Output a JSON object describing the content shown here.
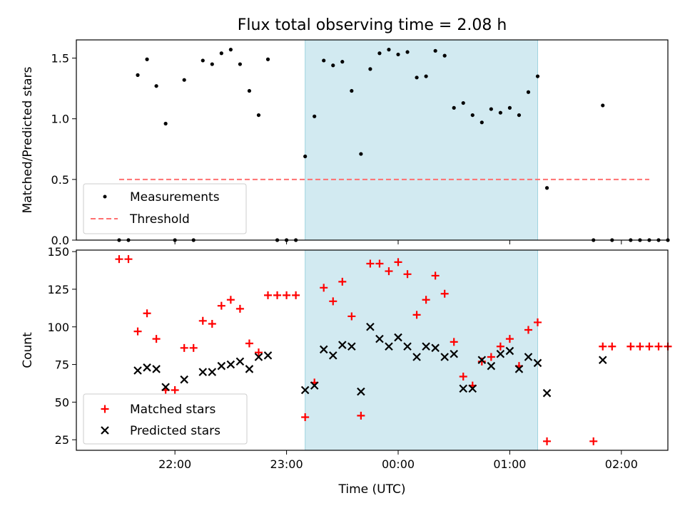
{
  "chart_data": [
    {
      "type": "scatter",
      "panel": "top",
      "title": "Flux total observing time = 2.08 h",
      "ylabel": "Matched/Predicted stars",
      "xlabel": "",
      "ylim": [
        0,
        1.65
      ],
      "yticks": [
        0.0,
        0.5,
        1.0,
        1.5
      ],
      "ytick_labels": [
        "0.0",
        "0.5",
        "1.0",
        "1.5"
      ],
      "threshold": {
        "name": "Threshold",
        "value": 0.5,
        "x_start": "21:30",
        "x_end": "02:15",
        "color": "#ff7070"
      },
      "legend_position": "lower-left",
      "series": [
        {
          "name": "Measurements",
          "marker": "dot",
          "color": "#000000",
          "points": [
            [
              "21:30",
              0
            ],
            [
              "21:35",
              0
            ],
            [
              "21:40",
              1.36
            ],
            [
              "21:45",
              1.49
            ],
            [
              "21:50",
              1.27
            ],
            [
              "21:55",
              0.96
            ],
            [
              "22:00",
              0
            ],
            [
              "22:05",
              1.32
            ],
            [
              "22:10",
              0
            ],
            [
              "22:15",
              1.48
            ],
            [
              "22:20",
              1.45
            ],
            [
              "22:25",
              1.54
            ],
            [
              "22:30",
              1.57
            ],
            [
              "22:35",
              1.45
            ],
            [
              "22:40",
              1.23
            ],
            [
              "22:45",
              1.03
            ],
            [
              "22:50",
              1.49
            ],
            [
              "22:55",
              0
            ],
            [
              "23:00",
              0
            ],
            [
              "23:05",
              0
            ],
            [
              "23:10",
              0.69
            ],
            [
              "23:15",
              1.02
            ],
            [
              "23:20",
              1.48
            ],
            [
              "23:25",
              1.44
            ],
            [
              "23:30",
              1.47
            ],
            [
              "23:35",
              1.23
            ],
            [
              "23:40",
              0.71
            ],
            [
              "23:45",
              1.41
            ],
            [
              "23:50",
              1.54
            ],
            [
              "23:55",
              1.57
            ],
            [
              "00:00",
              1.53
            ],
            [
              "00:05",
              1.55
            ],
            [
              "00:10",
              1.34
            ],
            [
              "00:15",
              1.35
            ],
            [
              "00:20",
              1.56
            ],
            [
              "00:25",
              1.52
            ],
            [
              "00:30",
              1.09
            ],
            [
              "00:35",
              1.13
            ],
            [
              "00:40",
              1.03
            ],
            [
              "00:45",
              0.97
            ],
            [
              "00:50",
              1.08
            ],
            [
              "00:55",
              1.05
            ],
            [
              "01:00",
              1.09
            ],
            [
              "01:05",
              1.03
            ],
            [
              "01:10",
              1.22
            ],
            [
              "01:15",
              1.35
            ],
            [
              "01:20",
              0.43
            ],
            [
              "01:45",
              0
            ],
            [
              "01:50",
              1.11
            ],
            [
              "01:55",
              0
            ],
            [
              "02:05",
              0
            ],
            [
              "02:10",
              0
            ],
            [
              "02:15",
              0
            ],
            [
              "02:20",
              0
            ],
            [
              "02:25",
              0
            ]
          ]
        }
      ]
    },
    {
      "type": "scatter",
      "panel": "bottom",
      "title": "",
      "ylabel": "Count",
      "xlabel": "Time (UTC)",
      "ylim": [
        18,
        151
      ],
      "yticks": [
        25,
        50,
        75,
        100,
        125,
        150
      ],
      "ytick_labels": [
        "25",
        "50",
        "75",
        "100",
        "125",
        "150"
      ],
      "legend_position": "lower-left",
      "series": [
        {
          "name": "Matched stars",
          "marker": "plus",
          "color": "#ff0000",
          "points": [
            [
              "21:30",
              145
            ],
            [
              "21:35",
              145
            ],
            [
              "21:40",
              97
            ],
            [
              "21:45",
              109
            ],
            [
              "21:50",
              92
            ],
            [
              "21:55",
              58
            ],
            [
              "22:00",
              58
            ],
            [
              "22:05",
              86
            ],
            [
              "22:10",
              86
            ],
            [
              "22:15",
              104
            ],
            [
              "22:20",
              102
            ],
            [
              "22:25",
              114
            ],
            [
              "22:30",
              118
            ],
            [
              "22:35",
              112
            ],
            [
              "22:40",
              89
            ],
            [
              "22:45",
              83
            ],
            [
              "22:50",
              121
            ],
            [
              "22:55",
              121
            ],
            [
              "23:00",
              121
            ],
            [
              "23:05",
              121
            ],
            [
              "23:10",
              40
            ],
            [
              "23:15",
              63
            ],
            [
              "23:20",
              126
            ],
            [
              "23:25",
              117
            ],
            [
              "23:30",
              130
            ],
            [
              "23:35",
              107
            ],
            [
              "23:40",
              41
            ],
            [
              "23:45",
              142
            ],
            [
              "23:50",
              142
            ],
            [
              "23:55",
              137
            ],
            [
              "00:00",
              143
            ],
            [
              "00:05",
              135
            ],
            [
              "00:10",
              108
            ],
            [
              "00:15",
              118
            ],
            [
              "00:20",
              134
            ],
            [
              "00:25",
              122
            ],
            [
              "00:30",
              90
            ],
            [
              "00:35",
              67
            ],
            [
              "00:40",
              61
            ],
            [
              "00:45",
              77
            ],
            [
              "00:50",
              80
            ],
            [
              "00:55",
              87
            ],
            [
              "01:00",
              92
            ],
            [
              "01:05",
              74
            ],
            [
              "01:10",
              98
            ],
            [
              "01:15",
              103
            ],
            [
              "01:20",
              24
            ],
            [
              "01:45",
              24
            ],
            [
              "01:50",
              87
            ],
            [
              "01:55",
              87
            ],
            [
              "02:05",
              87
            ],
            [
              "02:10",
              87
            ],
            [
              "02:15",
              87
            ],
            [
              "02:20",
              87
            ],
            [
              "02:25",
              87
            ]
          ]
        },
        {
          "name": "Predicted stars",
          "marker": "x",
          "color": "#000000",
          "points": [
            [
              "21:40",
              71
            ],
            [
              "21:45",
              73
            ],
            [
              "21:50",
              72
            ],
            [
              "21:55",
              60
            ],
            [
              "22:05",
              65
            ],
            [
              "22:15",
              70
            ],
            [
              "22:20",
              70
            ],
            [
              "22:25",
              74
            ],
            [
              "22:30",
              75
            ],
            [
              "22:35",
              77
            ],
            [
              "22:40",
              72
            ],
            [
              "22:45",
              80
            ],
            [
              "22:50",
              81
            ],
            [
              "23:10",
              58
            ],
            [
              "23:15",
              61
            ],
            [
              "23:20",
              85
            ],
            [
              "23:25",
              81
            ],
            [
              "23:30",
              88
            ],
            [
              "23:35",
              87
            ],
            [
              "23:40",
              57
            ],
            [
              "23:45",
              100
            ],
            [
              "23:50",
              92
            ],
            [
              "23:55",
              87
            ],
            [
              "00:00",
              93
            ],
            [
              "00:05",
              87
            ],
            [
              "00:10",
              80
            ],
            [
              "00:15",
              87
            ],
            [
              "00:20",
              86
            ],
            [
              "00:25",
              80
            ],
            [
              "00:30",
              82
            ],
            [
              "00:35",
              59
            ],
            [
              "00:40",
              59
            ],
            [
              "00:45",
              78
            ],
            [
              "00:50",
              74
            ],
            [
              "00:55",
              82
            ],
            [
              "01:00",
              84
            ],
            [
              "01:05",
              72
            ],
            [
              "01:10",
              80
            ],
            [
              "01:15",
              76
            ],
            [
              "01:20",
              56
            ],
            [
              "01:50",
              78
            ]
          ]
        }
      ]
    }
  ],
  "shared_x": {
    "range": [
      "21:07",
      "02:25"
    ],
    "ticks": [
      "22:00",
      "23:00",
      "00:00",
      "01:00",
      "02:00"
    ],
    "shaded_interval": {
      "start": "23:10",
      "end": "01:15",
      "color": "#add8e6"
    }
  }
}
